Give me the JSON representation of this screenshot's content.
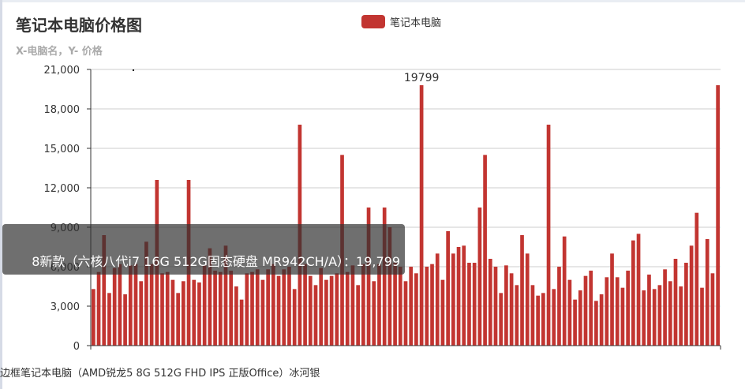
{
  "chart_data": {
    "type": "bar",
    "title": "笔记本电脑价格图",
    "subtitle": "X-电脑名，Y- 价格",
    "legend": [
      "笔记本电脑"
    ],
    "legend_position": "top-center",
    "color": "#c23531",
    "ylim": [
      0,
      21000
    ],
    "yticks": [
      "0",
      "3,000",
      "6,000",
      "9,000",
      "12,000",
      "15,000",
      "18,000",
      "21,000"
    ],
    "grid": true,
    "values": [
      4300,
      5600,
      8400,
      4000,
      5900,
      6200,
      3900,
      6100,
      6200,
      4900,
      7900,
      6200,
      12600,
      5500,
      5600,
      5000,
      4000,
      4900,
      12600,
      5000,
      4800,
      6100,
      7400,
      5700,
      5600,
      7600,
      5700,
      4500,
      3500,
      5500,
      5600,
      5800,
      5000,
      5800,
      6200,
      5300,
      5800,
      6000,
      4300,
      16800,
      6200,
      5300,
      4600,
      5900,
      5000,
      5300,
      5500,
      14500,
      5600,
      6100,
      4600,
      6200,
      10500,
      4900,
      6200,
      10500,
      9000,
      6300,
      6000,
      4900,
      6000,
      5500,
      19799,
      6000,
      6200,
      7000,
      5000,
      8700,
      7000,
      7500,
      7600,
      6300,
      6300,
      10500,
      14500,
      6600,
      6000,
      4000,
      6100,
      5500,
      4600,
      8400,
      7000,
      4600,
      3800,
      4000,
      16800,
      4300,
      6000,
      8300,
      5000,
      3500,
      4200,
      5300,
      5700,
      3400,
      3900,
      5200,
      7000,
      5200,
      4400,
      5700,
      8000,
      8500,
      4200,
      5400,
      4300,
      4600,
      5800,
      4900,
      6600,
      4500,
      6300,
      7600,
      10100,
      4400,
      8100,
      5500,
      19799
    ],
    "highlight_label": "19799",
    "tooltip_text": "8新款（六核八代i7 16G 512G固态硬盘 MR942CH/A）：19,799",
    "x_label_visible": "边框笔记本电脑（AMD锐龙5 8G 512G FHD IPS 正版Office）冰河银"
  }
}
